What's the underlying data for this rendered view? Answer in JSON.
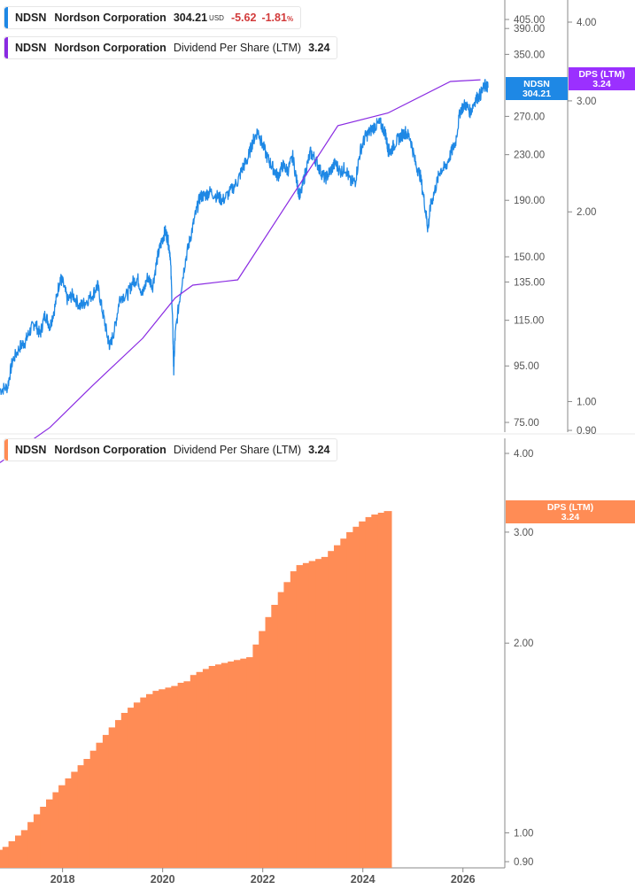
{
  "legends": {
    "price": {
      "ticker": "NDSN",
      "company": "Nordson Corporation",
      "price": "304.21",
      "currency": "USD",
      "change": "-5.62",
      "change_pct": "-1.81",
      "pct_sign": "%",
      "color": "#1e88e5"
    },
    "dps_top": {
      "ticker": "NDSN",
      "company": "Nordson Corporation",
      "metric": "Dividend Per Share (LTM)",
      "value": "3.24",
      "color": "#8a2be2"
    },
    "dps_bottom": {
      "ticker": "NDSN",
      "company": "Nordson Corporation",
      "metric": "Dividend Per Share (LTM)",
      "value": "3.24",
      "color": "#ff8c55"
    }
  },
  "badges": {
    "price": {
      "line1": "NDSN",
      "line2": "304.21",
      "color": "#1e88e5"
    },
    "dps_top": {
      "line1": "DPS (LTM)",
      "line2": "3.24",
      "color": "#9b30ff"
    },
    "dps_bottom": {
      "line1": "DPS (LTM)",
      "line2": "3.24",
      "color": "#ff8c55"
    }
  },
  "chart_data": [
    {
      "type": "line",
      "title": "",
      "series": [
        {
          "name": "Nordson Corporation",
          "color": "#1e88e5",
          "axis": "left",
          "points": [
            [
              2016.75,
              86
            ],
            [
              2016.9,
              87
            ],
            [
              2017.0,
              97
            ],
            [
              2017.15,
              103
            ],
            [
              2017.25,
              105
            ],
            [
              2017.35,
              110
            ],
            [
              2017.45,
              114
            ],
            [
              2017.55,
              108
            ],
            [
              2017.65,
              118
            ],
            [
              2017.75,
              112
            ],
            [
              2017.85,
              122
            ],
            [
              2017.95,
              137
            ],
            [
              2018.0,
              135
            ],
            [
              2018.1,
              125
            ],
            [
              2018.2,
              128
            ],
            [
              2018.35,
              122
            ],
            [
              2018.45,
              124
            ],
            [
              2018.6,
              128
            ],
            [
              2018.7,
              133
            ],
            [
              2018.8,
              119
            ],
            [
              2018.9,
              107
            ],
            [
              2018.95,
              103
            ],
            [
              2019.05,
              112
            ],
            [
              2019.15,
              127
            ],
            [
              2019.3,
              128
            ],
            [
              2019.4,
              135
            ],
            [
              2019.5,
              137
            ],
            [
              2019.6,
              128
            ],
            [
              2019.7,
              138
            ],
            [
              2019.8,
              133
            ],
            [
              2019.9,
              150
            ],
            [
              2019.98,
              160
            ],
            [
              2020.05,
              167
            ],
            [
              2020.1,
              162
            ],
            [
              2020.15,
              152
            ],
            [
              2020.2,
              113
            ],
            [
              2020.22,
              93
            ],
            [
              2020.25,
              108
            ],
            [
              2020.35,
              128
            ],
            [
              2020.45,
              147
            ],
            [
              2020.55,
              162
            ],
            [
              2020.65,
              178
            ],
            [
              2020.75,
              193
            ],
            [
              2020.85,
              194
            ],
            [
              2020.95,
              197
            ],
            [
              2021.1,
              193
            ],
            [
              2021.2,
              190
            ],
            [
              2021.35,
              197
            ],
            [
              2021.5,
              206
            ],
            [
              2021.6,
              218
            ],
            [
              2021.7,
              226
            ],
            [
              2021.8,
              243
            ],
            [
              2021.9,
              254
            ],
            [
              2021.98,
              242
            ],
            [
              2022.1,
              226
            ],
            [
              2022.2,
              218
            ],
            [
              2022.3,
              210
            ],
            [
              2022.4,
              220
            ],
            [
              2022.5,
              215
            ],
            [
              2022.6,
              228
            ],
            [
              2022.7,
              200
            ],
            [
              2022.75,
              193
            ],
            [
              2022.85,
              213
            ],
            [
              2022.95,
              232
            ],
            [
              2023.05,
              226
            ],
            [
              2023.15,
              215
            ],
            [
              2023.25,
              208
            ],
            [
              2023.35,
              215
            ],
            [
              2023.45,
              222
            ],
            [
              2023.55,
              214
            ],
            [
              2023.65,
              218
            ],
            [
              2023.75,
              205
            ],
            [
              2023.85,
              206
            ],
            [
              2023.95,
              234
            ],
            [
              2024.05,
              248
            ],
            [
              2024.15,
              254
            ],
            [
              2024.25,
              260
            ],
            [
              2024.35,
              262
            ],
            [
              2024.45,
              252
            ],
            [
              2024.5,
              235
            ],
            [
              2024.55,
              233
            ],
            [
              2024.65,
              242
            ],
            [
              2024.75,
              248
            ],
            [
              2024.85,
              253
            ],
            [
              2024.95,
              246
            ],
            [
              2025.05,
              222
            ],
            [
              2025.15,
              210
            ],
            [
              2025.25,
              183
            ],
            [
              2025.3,
              168
            ],
            [
              2025.35,
              185
            ],
            [
              2025.45,
              200
            ],
            [
              2025.55,
              216
            ],
            [
              2025.65,
              218
            ],
            [
              2025.75,
              230
            ],
            [
              2025.85,
              242
            ],
            [
              2025.95,
              278
            ],
            [
              2026.05,
              284
            ],
            [
              2026.15,
              275
            ],
            [
              2026.25,
              290
            ],
            [
              2026.35,
              296
            ],
            [
              2026.45,
              308
            ],
            [
              2026.5,
              304.21
            ]
          ]
        },
        {
          "name": "Dividend Per Share (LTM)",
          "color": "#8a2be2",
          "axis": "right",
          "points": [
            [
              2016.75,
              0.8
            ],
            [
              2017.75,
              0.91
            ],
            [
              2018.6,
              1.06
            ],
            [
              2019.6,
              1.26
            ],
            [
              2020.25,
              1.46
            ],
            [
              2020.6,
              1.53
            ],
            [
              2021.5,
              1.56
            ],
            [
              2023.5,
              2.74
            ],
            [
              2024.5,
              2.87
            ],
            [
              2025.75,
              3.22
            ],
            [
              2026.35,
              3.24
            ]
          ]
        }
      ],
      "y_left_ticks": [
        "75.00",
        "95.00",
        "115.00",
        "135.00",
        "150.00",
        "190.00",
        "230.00",
        "270.00",
        "350.00",
        "390.00",
        "405.00"
      ],
      "y_right_ticks": [
        "0.90",
        "1.00",
        "2.00",
        "3.00",
        "4.00"
      ],
      "scale": "log"
    },
    {
      "type": "bar",
      "title": "",
      "color": "#ff8c55",
      "series": [
        {
          "name": "Dividend Per Share (LTM)",
          "values": [
            [
              2016.75,
              0.94
            ],
            [
              2016.88,
              0.95
            ],
            [
              2017.0,
              0.97
            ],
            [
              2017.13,
              0.99
            ],
            [
              2017.25,
              1.01
            ],
            [
              2017.38,
              1.04
            ],
            [
              2017.5,
              1.07
            ],
            [
              2017.63,
              1.1
            ],
            [
              2017.75,
              1.13
            ],
            [
              2017.88,
              1.16
            ],
            [
              2018.0,
              1.19
            ],
            [
              2018.13,
              1.22
            ],
            [
              2018.25,
              1.25
            ],
            [
              2018.38,
              1.28
            ],
            [
              2018.5,
              1.31
            ],
            [
              2018.63,
              1.35
            ],
            [
              2018.75,
              1.39
            ],
            [
              2018.88,
              1.43
            ],
            [
              2019.0,
              1.47
            ],
            [
              2019.13,
              1.51
            ],
            [
              2019.25,
              1.55
            ],
            [
              2019.38,
              1.58
            ],
            [
              2019.5,
              1.61
            ],
            [
              2019.63,
              1.64
            ],
            [
              2019.75,
              1.66
            ],
            [
              2019.88,
              1.68
            ],
            [
              2020.0,
              1.69
            ],
            [
              2020.13,
              1.7
            ],
            [
              2020.25,
              1.71
            ],
            [
              2020.38,
              1.73
            ],
            [
              2020.5,
              1.74
            ],
            [
              2020.63,
              1.78
            ],
            [
              2020.75,
              1.8
            ],
            [
              2020.88,
              1.82
            ],
            [
              2021.0,
              1.84
            ],
            [
              2021.13,
              1.85
            ],
            [
              2021.25,
              1.86
            ],
            [
              2021.38,
              1.87
            ],
            [
              2021.5,
              1.88
            ],
            [
              2021.63,
              1.89
            ],
            [
              2021.75,
              1.9
            ],
            [
              2021.88,
              1.99
            ],
            [
              2022.0,
              2.09
            ],
            [
              2022.13,
              2.2
            ],
            [
              2022.25,
              2.3
            ],
            [
              2022.38,
              2.41
            ],
            [
              2022.5,
              2.5
            ],
            [
              2022.63,
              2.6
            ],
            [
              2022.75,
              2.66
            ],
            [
              2022.88,
              2.68
            ],
            [
              2023.0,
              2.7
            ],
            [
              2023.13,
              2.72
            ],
            [
              2023.25,
              2.74
            ],
            [
              2023.38,
              2.8
            ],
            [
              2023.5,
              2.86
            ],
            [
              2023.63,
              2.93
            ],
            [
              2023.75,
              3.0
            ],
            [
              2023.88,
              3.06
            ],
            [
              2024.0,
              3.12
            ],
            [
              2024.13,
              3.17
            ],
            [
              2024.25,
              3.2
            ],
            [
              2024.38,
              3.22
            ],
            [
              2024.5,
              3.24
            ]
          ]
        }
      ],
      "x_ticks": [
        "2018",
        "2020",
        "2022",
        "2024",
        "2026"
      ],
      "y_right_ticks": [
        "0.90",
        "1.00",
        "2.00",
        "3.00",
        "4.00"
      ],
      "scale": "log"
    }
  ]
}
